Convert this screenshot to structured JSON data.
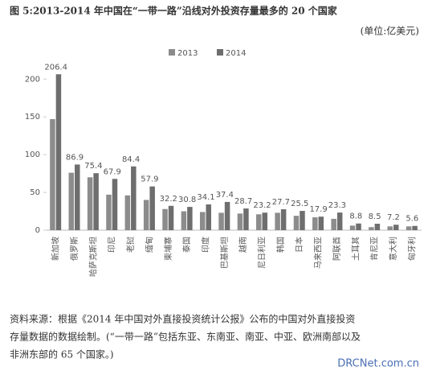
{
  "chart_data": {
    "type": "bar",
    "title": "图 5:2013-2014 年中国在“一带一路”沿线对外投资存量最多的 20 个国家",
    "unit": "(单位:亿美元)",
    "categories": [
      "新加坡",
      "俄罗斯",
      "哈萨克斯坦",
      "印尼",
      "老挝",
      "缅甸",
      "柬埔寨",
      "泰国",
      "印度",
      "巴基斯坦",
      "越南",
      "尼日利亚",
      "韩国",
      "日本",
      "马来西亚",
      "阿联酋",
      "土耳其",
      "肯尼亚",
      "意大利",
      "匈牙利"
    ],
    "series": [
      {
        "name": "2013",
        "color": "#8c8c8c",
        "values": [
          147,
          76,
          70,
          47,
          46,
          40,
          28,
          25,
          24,
          23,
          22,
          21,
          23,
          19,
          17,
          15,
          6,
          4,
          5,
          5
        ]
      },
      {
        "name": "2014",
        "color": "#6e6e6e",
        "values": [
          206.4,
          86.9,
          75.4,
          67.9,
          84.4,
          57.9,
          32.2,
          30.8,
          34.1,
          37.4,
          28.7,
          23.2,
          27.7,
          25.5,
          17.9,
          23.3,
          8.8,
          8.5,
          7.2,
          5.6
        ],
        "show_labels": true
      }
    ],
    "ylim": [
      0,
      220
    ],
    "yticks": [
      0,
      50,
      100,
      150,
      200
    ],
    "grid": false,
    "legend": "top",
    "note": [
      "资料来源：根据《2014 年中国对外直接投资统计公报》公布的中国对外直接投资",
      "存量数据的数据绘制。(“一带一路”包括东亚、东南亚、南亚、中亚、欧洲南部以及",
      "非洲东部的 65 个国家。)"
    ],
    "watermark": "DRCNet.com.cn"
  }
}
